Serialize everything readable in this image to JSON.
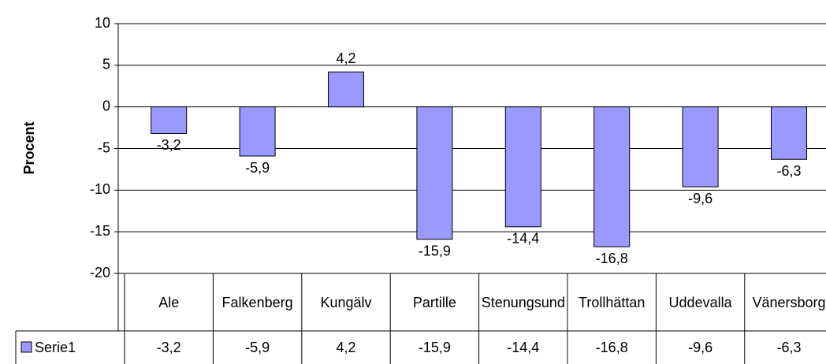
{
  "chart_data": {
    "type": "bar",
    "y_label": "Procent",
    "categories": [
      "Ale",
      "Falkenberg",
      "Kungälv",
      "Partille",
      "Stenungsund",
      "Trollhättan",
      "Uddevalla",
      "Vänersborg"
    ],
    "series": [
      {
        "name": "Serie1",
        "color": "#9999ff",
        "values": [
          -3.2,
          -5.9,
          4.2,
          -15.9,
          -14.4,
          -16.8,
          -9.6,
          -6.3
        ],
        "value_labels": [
          "-3,2",
          "-5,9",
          "4,2",
          "-15,9",
          "-14,4",
          "-16,8",
          "-9,6",
          "-6,3"
        ]
      }
    ],
    "ylim": [
      -20,
      10
    ],
    "yticks": [
      -20,
      -15,
      -10,
      -5,
      0,
      5,
      10
    ],
    "grid": true
  }
}
